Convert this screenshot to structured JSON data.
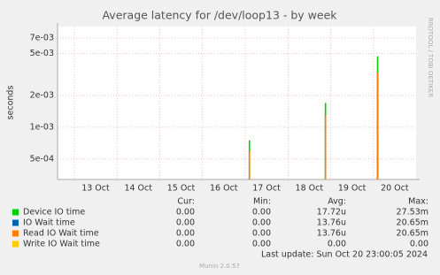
{
  "chart_data": {
    "type": "spike",
    "title": "Average latency for /dev/loop13 - by week",
    "y_label": "seconds",
    "log_scale": true,
    "grid": true,
    "xlim": [
      12.11,
      20.5
    ],
    "xticks": [
      {
        "value": 13,
        "label": "13 Oct"
      },
      {
        "value": 14,
        "label": "14 Oct"
      },
      {
        "value": 15,
        "label": "15 Oct"
      },
      {
        "value": 16,
        "label": "16 Oct"
      },
      {
        "value": 17,
        "label": "17 Oct"
      },
      {
        "value": 18,
        "label": "18 Oct"
      },
      {
        "value": 19,
        "label": "19 Oct"
      },
      {
        "value": 20,
        "label": "20 Oct"
      }
    ],
    "ylim": [
      0.00032,
      0.009
    ],
    "yticks": [
      {
        "value": 0.0005,
        "label": "5e-04"
      },
      {
        "value": 0.001,
        "label": "1e-03"
      },
      {
        "value": 0.002,
        "label": "2e-03"
      },
      {
        "value": 0.005,
        "label": "5e-03"
      },
      {
        "value": 0.007,
        "label": "7e-03"
      }
    ],
    "x": [
      16.6,
      18.38,
      19.6
    ],
    "series": [
      {
        "name": "Device IO time",
        "color": "#00cc00",
        "values": [
          0.00075,
          0.0017,
          0.0047
        ]
      },
      {
        "name": "IO Wait time",
        "color": "#0066b3",
        "values": [
          0.0006,
          0.0013,
          0.0033
        ]
      },
      {
        "name": "Read IO Wait time",
        "color": "#ff8000",
        "values": [
          0.0006,
          0.0013,
          0.0033
        ]
      },
      {
        "name": "Write IO Wait time",
        "color": "#ffcc00",
        "values": [
          0,
          0,
          0
        ]
      }
    ],
    "legend_table": {
      "headers": [
        "Cur:",
        "Min:",
        "Avg:",
        "Max:"
      ],
      "rows": [
        [
          "0.00",
          "0.00",
          "17.72u",
          "27.53m"
        ],
        [
          "0.00",
          "0.00",
          "13.76u",
          "20.65m"
        ],
        [
          "0.00",
          "0.00",
          "13.76u",
          "20.65m"
        ],
        [
          "0.00",
          "0.00",
          "0.00",
          "0.00"
        ]
      ]
    },
    "watermark": "RRDTOOL / TOBI OETIKER",
    "last_update": "Last update: Sun Oct 20 23:00:05 2024",
    "footer": "Munin 2.0.57"
  }
}
